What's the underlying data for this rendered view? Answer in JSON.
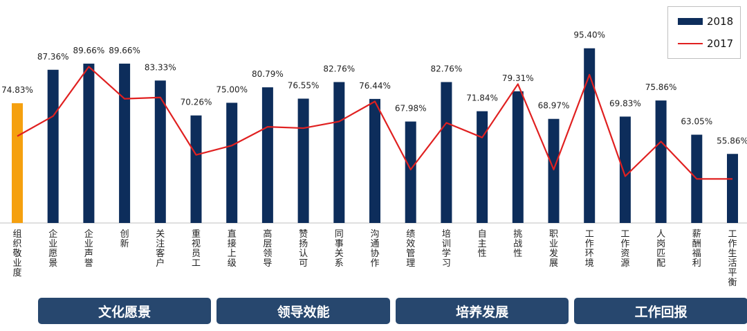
{
  "colors": {
    "bar_2018": "#0d2d5b",
    "bar_highlight": "#f5a00f",
    "line_2017": "#e02020",
    "group_box": "#27476e"
  },
  "chart_data": {
    "type": "bar",
    "categories": [
      "组织敬业度",
      "企业愿景",
      "企业声誉",
      "创新",
      "关注客户",
      "重视员工",
      "直接上级",
      "高层领导",
      "赞扬认可",
      "同事关系",
      "沟通协作",
      "绩效管理",
      "培训学习",
      "自主性",
      "挑战性",
      "职业发展",
      "工作环境",
      "工作资源",
      "人岗匹配",
      "薪酬福利",
      "工作生活平衡"
    ],
    "series": [
      {
        "name": "2018",
        "type": "bar",
        "values": [
          74.83,
          87.36,
          89.66,
          89.66,
          83.33,
          70.26,
          75.0,
          80.79,
          76.55,
          82.76,
          76.44,
          67.98,
          82.76,
          71.84,
          79.31,
          68.97,
          95.4,
          69.83,
          75.86,
          63.05,
          55.86
        ],
        "labels": [
          "74.83%",
          "87.36%",
          "89.66%",
          "89.66%",
          "83.33%",
          "70.26%",
          "75.00%",
          "80.79%",
          "76.55%",
          "82.76%",
          "76.44%",
          "67.98%",
          "82.76%",
          "71.84%",
          "79.31%",
          "68.97%",
          "95.40%",
          "69.83%",
          "75.86%",
          "63.05%",
          "55.86%"
        ]
      },
      {
        "name": "2017",
        "type": "line",
        "values": [
          62.5,
          70.0,
          88.5,
          76.5,
          77.0,
          55.5,
          59.0,
          66.0,
          65.5,
          68.0,
          75.5,
          50.0,
          67.5,
          62.0,
          82.0,
          50.0,
          85.5,
          47.5,
          60.5,
          46.5,
          46.5
        ]
      }
    ],
    "highlight_index": 0,
    "ylim": [
      30,
      100
    ],
    "grid": false,
    "legend_position": "top-right",
    "groups": [
      {
        "label": "文化愿景",
        "start": 1,
        "end": 5
      },
      {
        "label": "领导效能",
        "start": 6,
        "end": 10
      },
      {
        "label": "培养发展",
        "start": 11,
        "end": 15
      },
      {
        "label": "工作回报",
        "start": 16,
        "end": 20
      }
    ]
  }
}
